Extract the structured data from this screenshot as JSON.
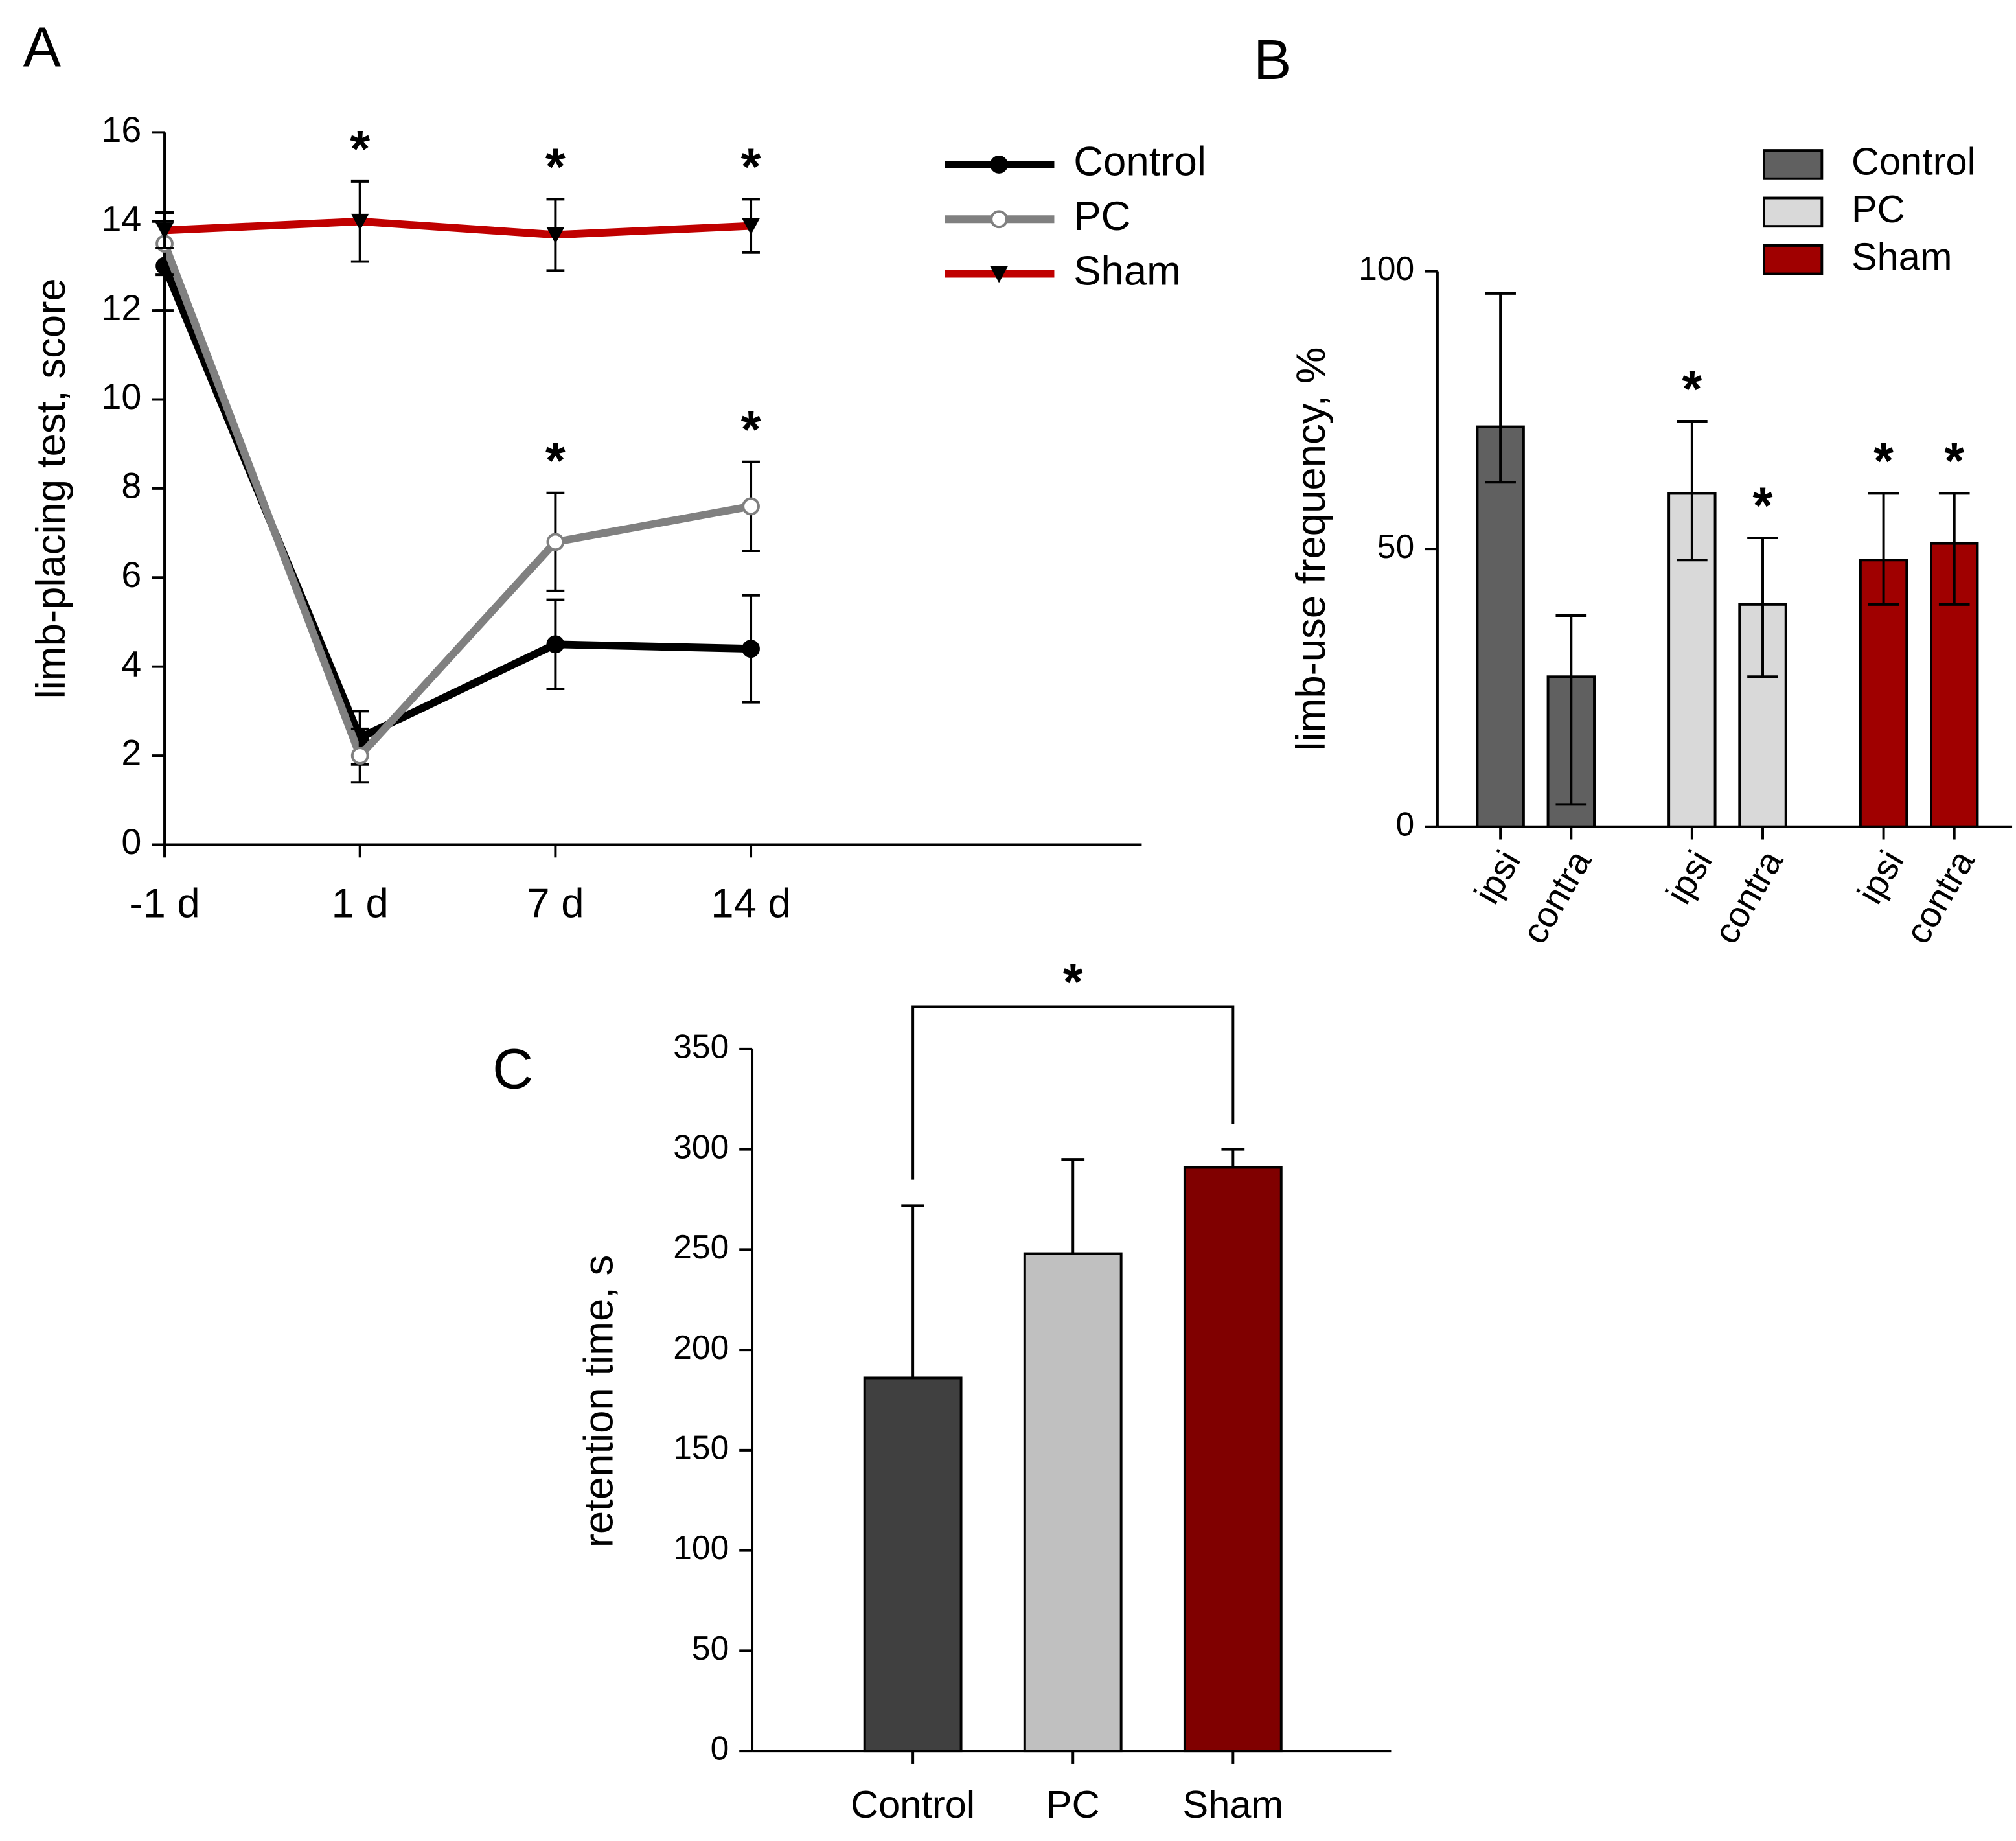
{
  "chart_data": [
    {
      "type": "line",
      "panel": "A",
      "ylabel": "limb-placing test, score",
      "categories": [
        "-1 d",
        "1 d",
        "7 d",
        "14 d"
      ],
      "ylim": [
        0,
        16
      ],
      "yticks": [
        0,
        2,
        4,
        6,
        8,
        10,
        12,
        14,
        16
      ],
      "series": [
        {
          "name": "Control",
          "color": "#000000",
          "marker": "circle",
          "values": [
            13,
            2.4,
            4.5,
            4.4
          ],
          "errors": [
            1.0,
            0.6,
            1.0,
            1.2
          ],
          "significance": [
            null,
            null,
            null,
            null
          ]
        },
        {
          "name": "PC",
          "color": "#808080",
          "marker": "open-circle",
          "values": [
            13.5,
            2.0,
            6.8,
            7.6
          ],
          "errors": [
            0.7,
            0.6,
            1.1,
            1.0
          ],
          "significance": [
            null,
            null,
            "*",
            "*"
          ]
        },
        {
          "name": "Sham",
          "color": "#c00000",
          "marker": "triangle-down",
          "values": [
            13.8,
            14.0,
            13.7,
            13.9
          ],
          "errors": [
            0.4,
            0.9,
            0.8,
            0.6
          ],
          "significance": [
            null,
            "*",
            "*",
            "*"
          ]
        }
      ]
    },
    {
      "type": "grouped-bar",
      "panel": "B",
      "ylabel": "limb-use frequency, %",
      "categories": [
        "ipsi",
        "contra"
      ],
      "ylim": [
        0,
        100
      ],
      "yticks": [
        0,
        50,
        100
      ],
      "series": [
        {
          "name": "Control",
          "color": "#606060",
          "values": [
            72,
            27
          ],
          "errors_minus": [
            10,
            23
          ],
          "errors_plus": [
            24,
            11
          ],
          "significance": [
            null,
            null
          ]
        },
        {
          "name": "PC",
          "color": "#d9d9d9",
          "values": [
            60,
            40
          ],
          "errors_minus": [
            12,
            13
          ],
          "errors_plus": [
            13,
            12
          ],
          "significance": [
            "*",
            "*"
          ]
        },
        {
          "name": "Sham",
          "color": "#a00000",
          "values": [
            48,
            51
          ],
          "errors_minus": [
            8,
            11
          ],
          "errors_plus": [
            12,
            9
          ],
          "significance": [
            "*",
            "*"
          ]
        }
      ]
    },
    {
      "type": "bar",
      "panel": "C",
      "ylabel": "retention time, s",
      "categories": [
        "Control",
        "PC",
        "Sham"
      ],
      "values": [
        186,
        248,
        291
      ],
      "errors": [
        86,
        47,
        9
      ],
      "colors": [
        "#404040",
        "#c0c0c0",
        "#800000"
      ],
      "ylim": [
        0,
        350
      ],
      "yticks": [
        0,
        50,
        100,
        150,
        200,
        250,
        300,
        350
      ],
      "bracket": {
        "from": "Control",
        "to": "Sham",
        "label": "*"
      }
    }
  ]
}
